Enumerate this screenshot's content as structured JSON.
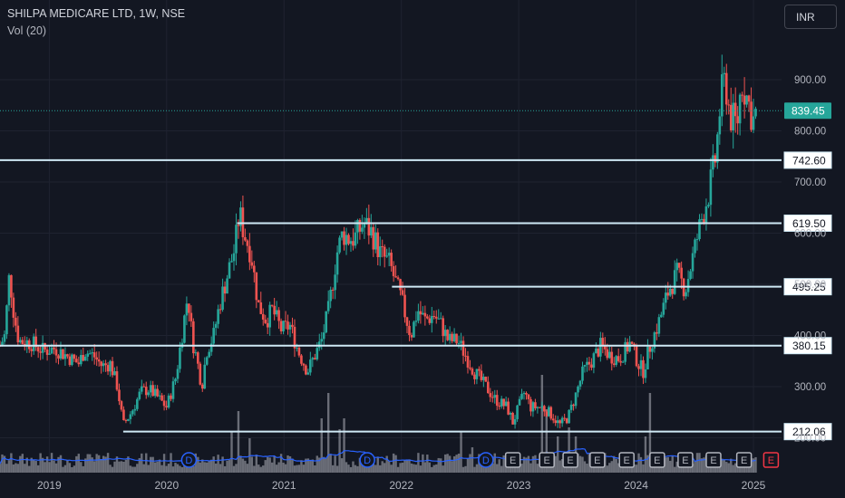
{
  "header": {
    "title": "SHILPA MEDICARE LTD, 1W, NSE",
    "indicator": "Vol (20)",
    "currency": "INR"
  },
  "colors": {
    "background": "#131722",
    "grid": "#1f2330",
    "up": "#26a69a",
    "down": "#ef5350",
    "level_line": "#cfe9f5",
    "volume_ma": "#2962ff",
    "volume": "#b2b5be",
    "last_price_bg": "#26a69a",
    "event_dividend": "#2962ff",
    "event_earnings": "#b2b5be",
    "event_upcoming": "#f23645"
  },
  "chart_data": {
    "type": "candlestick",
    "title": "SHILPA MEDICARE LTD, 1W, NSE",
    "y_axis": {
      "ticks": [
        "900.00",
        "800.00",
        "700.00",
        "600.00",
        "500.00",
        "400.00",
        "300.00",
        "200.00"
      ],
      "tick_values": [
        900,
        800,
        700,
        600,
        500,
        400,
        300,
        200
      ],
      "range": [
        180,
        1000
      ]
    },
    "x_axis": {
      "ticks": [
        "2019",
        "2020",
        "2021",
        "2022",
        "2023",
        "2024",
        "2025"
      ],
      "tick_years": [
        2019,
        2020,
        2021,
        2022,
        2023,
        2024,
        2025
      ],
      "range": [
        2018.58,
        2025.17
      ]
    },
    "last_price": {
      "value": 839.45,
      "label": "839.45"
    },
    "horizontal_levels": [
      {
        "value": 742.6,
        "label": "742.60",
        "start": 2018.58
      },
      {
        "value": 619.5,
        "label": "619.50",
        "start": 2020.6
      },
      {
        "value": 495.25,
        "label": "495.25",
        "start": 2021.92
      },
      {
        "value": 380.15,
        "label": "380.15",
        "start": 2018.58
      },
      {
        "value": 212.06,
        "label": "212.06",
        "start": 2019.63
      }
    ],
    "price_path": [
      [
        2018.58,
        380
      ],
      [
        2018.62,
        400
      ],
      [
        2018.66,
        520
      ],
      [
        2018.7,
        440
      ],
      [
        2018.74,
        390
      ],
      [
        2018.85,
        385
      ],
      [
        2018.95,
        370
      ],
      [
        2019.05,
        375
      ],
      [
        2019.15,
        360
      ],
      [
        2019.25,
        345
      ],
      [
        2019.3,
        370
      ],
      [
        2019.38,
        360
      ],
      [
        2019.45,
        340
      ],
      [
        2019.52,
        345
      ],
      [
        2019.58,
        300
      ],
      [
        2019.63,
        225
      ],
      [
        2019.7,
        250
      ],
      [
        2019.78,
        290
      ],
      [
        2019.85,
        295
      ],
      [
        2019.92,
        280
      ],
      [
        2020.0,
        260
      ],
      [
        2020.08,
        320
      ],
      [
        2020.13,
        400
      ],
      [
        2020.18,
        480
      ],
      [
        2020.22,
        390
      ],
      [
        2020.26,
        350
      ],
      [
        2020.3,
        300
      ],
      [
        2020.34,
        370
      ],
      [
        2020.4,
        400
      ],
      [
        2020.45,
        460
      ],
      [
        2020.52,
        520
      ],
      [
        2020.58,
        570
      ],
      [
        2020.62,
        640
      ],
      [
        2020.66,
        600
      ],
      [
        2020.72,
        560
      ],
      [
        2020.78,
        460
      ],
      [
        2020.85,
        430
      ],
      [
        2020.9,
        450
      ],
      [
        2020.98,
        410
      ],
      [
        2021.05,
        420
      ],
      [
        2021.12,
        370
      ],
      [
        2021.2,
        330
      ],
      [
        2021.25,
        355
      ],
      [
        2021.32,
        390
      ],
      [
        2021.38,
        450
      ],
      [
        2021.45,
        560
      ],
      [
        2021.5,
        600
      ],
      [
        2021.55,
        590
      ],
      [
        2021.6,
        590
      ],
      [
        2021.68,
        620
      ],
      [
        2021.75,
        600
      ],
      [
        2021.82,
        560
      ],
      [
        2021.9,
        540
      ],
      [
        2022.0,
        470
      ],
      [
        2022.08,
        400
      ],
      [
        2022.14,
        450
      ],
      [
        2022.2,
        430
      ],
      [
        2022.28,
        440
      ],
      [
        2022.34,
        420
      ],
      [
        2022.4,
        390
      ],
      [
        2022.48,
        390
      ],
      [
        2022.55,
        360
      ],
      [
        2022.62,
        330
      ],
      [
        2022.72,
        300
      ],
      [
        2022.8,
        275
      ],
      [
        2022.9,
        260
      ],
      [
        2022.95,
        230
      ],
      [
        2023.0,
        260
      ],
      [
        2023.05,
        290
      ],
      [
        2023.1,
        260
      ],
      [
        2023.2,
        260
      ],
      [
        2023.28,
        245
      ],
      [
        2023.35,
        225
      ],
      [
        2023.42,
        240
      ],
      [
        2023.48,
        280
      ],
      [
        2023.55,
        330
      ],
      [
        2023.62,
        350
      ],
      [
        2023.7,
        380
      ],
      [
        2023.78,
        360
      ],
      [
        2023.86,
        355
      ],
      [
        2023.95,
        385
      ],
      [
        2024.02,
        345
      ],
      [
        2024.06,
        330
      ],
      [
        2024.12,
        380
      ],
      [
        2024.2,
        430
      ],
      [
        2024.28,
        490
      ],
      [
        2024.35,
        520
      ],
      [
        2024.42,
        490
      ],
      [
        2024.48,
        550
      ],
      [
        2024.55,
        620
      ],
      [
        2024.62,
        680
      ],
      [
        2024.68,
        750
      ],
      [
        2024.72,
        860
      ],
      [
        2024.76,
        900
      ],
      [
        2024.8,
        830
      ],
      [
        2024.86,
        810
      ],
      [
        2024.9,
        900
      ],
      [
        2024.95,
        860
      ],
      [
        2025.0,
        820
      ],
      [
        2025.03,
        839.45
      ]
    ],
    "volume_spikes": [
      [
        2019.63,
        12
      ],
      [
        2020.55,
        45
      ],
      [
        2020.62,
        68
      ],
      [
        2020.7,
        38
      ],
      [
        2021.32,
        60
      ],
      [
        2021.38,
        88
      ],
      [
        2021.48,
        48
      ],
      [
        2021.52,
        60
      ],
      [
        2022.5,
        46
      ],
      [
        2022.6,
        28
      ],
      [
        2023.2,
        108
      ],
      [
        2023.24,
        70
      ],
      [
        2023.34,
        40
      ],
      [
        2023.42,
        50
      ],
      [
        2023.48,
        40
      ],
      [
        2024.12,
        88
      ],
      [
        2024.08,
        40
      ]
    ],
    "events": [
      {
        "type": "dividend",
        "label": "D",
        "x": 2020.19
      },
      {
        "type": "dividend",
        "label": "D",
        "x": 2021.71
      },
      {
        "type": "dividend",
        "label": "D",
        "x": 2022.72
      },
      {
        "type": "earnings",
        "label": "E",
        "x": 2022.95
      },
      {
        "type": "earnings",
        "label": "E",
        "x": 2023.24
      },
      {
        "type": "earnings",
        "label": "E",
        "x": 2023.44
      },
      {
        "type": "earnings",
        "label": "E",
        "x": 2023.67
      },
      {
        "type": "earnings",
        "label": "E",
        "x": 2023.92
      },
      {
        "type": "earnings",
        "label": "E",
        "x": 2024.18
      },
      {
        "type": "earnings",
        "label": "E",
        "x": 2024.42
      },
      {
        "type": "earnings",
        "label": "E",
        "x": 2024.66
      },
      {
        "type": "earnings",
        "label": "E",
        "x": 2024.92
      },
      {
        "type": "upcoming",
        "label": "E",
        "x": 2025.15
      }
    ]
  }
}
